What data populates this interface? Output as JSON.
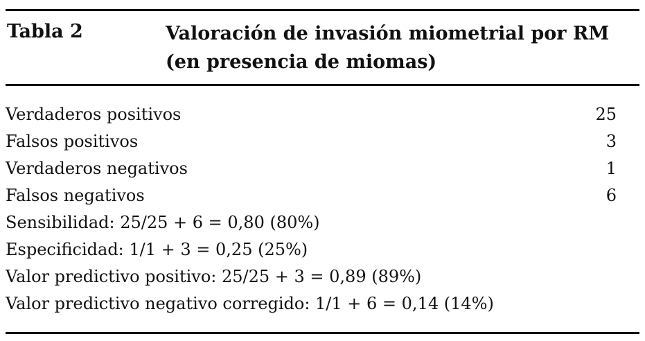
{
  "table": {
    "label": "Tabla 2",
    "title_lines": [
      "Valoración de invasión miometrial por RM",
      "(en presencia de miomas)"
    ],
    "rows": [
      {
        "label": "Verdaderos positivos",
        "value": "25"
      },
      {
        "label": "Falsos positivos",
        "value": "3"
      },
      {
        "label": "Verdaderos negativos",
        "value": "1"
      },
      {
        "label": "Falsos negativos",
        "value": "6"
      },
      {
        "label": "Sensibilidad: 25/25 + 6 = 0,80 (80%)",
        "value": ""
      },
      {
        "label": "Especificidad: 1/1 + 3 = 0,25 (25%)",
        "value": ""
      },
      {
        "label": "Valor predictivo positivo: 25/25 + 3 = 0,89 (89%)",
        "value": ""
      },
      {
        "label": "Valor predictivo negativo corregido: 1/1 + 6 = 0,14 (14%)",
        "value": ""
      }
    ]
  }
}
